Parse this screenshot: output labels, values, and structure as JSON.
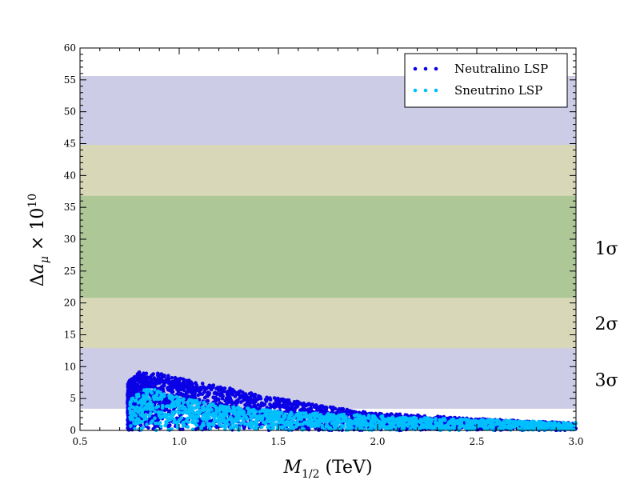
{
  "chart_data": {
    "type": "scatter",
    "xlabel": "M_{1/2} (TeV)",
    "ylabel": "Δa_μ × 10^{10}",
    "xlim": [
      0.5,
      3.0
    ],
    "ylim": [
      0,
      60
    ],
    "x_ticks": [
      "0.5",
      "1.0",
      "1.5",
      "2.0",
      "2.5",
      "3.0"
    ],
    "y_ticks": [
      "0",
      "5",
      "10",
      "15",
      "20",
      "25",
      "30",
      "35",
      "40",
      "45",
      "50",
      "55",
      "60"
    ],
    "grid": false,
    "legend_position": "top-right",
    "bands": [
      {
        "label": "3σ",
        "y_low": 3.4,
        "y_high": 55.6,
        "color": "#ccccE6"
      },
      {
        "label": "2σ",
        "y_low": 12.9,
        "y_high": 44.8,
        "color": "#d8d8b8"
      },
      {
        "label": "1σ",
        "y_low": 20.8,
        "y_high": 36.8,
        "color": "#adc796"
      }
    ],
    "series": [
      {
        "name": "Neutralino LSP",
        "color": "#0a00e6",
        "upper_envelope": [
          [
            0.74,
            7.5
          ],
          [
            0.8,
            9.3
          ],
          [
            0.85,
            8.8
          ],
          [
            0.9,
            9.0
          ],
          [
            1.0,
            8.2
          ],
          [
            1.1,
            7.6
          ],
          [
            1.2,
            7.0
          ],
          [
            1.3,
            6.3
          ],
          [
            1.4,
            5.6
          ],
          [
            1.5,
            5.0
          ],
          [
            1.6,
            4.5
          ],
          [
            1.7,
            4.0
          ],
          [
            1.8,
            3.5
          ],
          [
            1.9,
            3.0
          ],
          [
            2.0,
            2.7
          ],
          [
            2.2,
            2.4
          ],
          [
            2.4,
            2.0
          ],
          [
            2.6,
            1.7
          ],
          [
            2.8,
            1.4
          ],
          [
            3.0,
            1.2
          ]
        ]
      },
      {
        "name": "Sneutrino LSP",
        "color": "#00bfff",
        "upper_envelope": [
          [
            0.75,
            5.0
          ],
          [
            0.85,
            6.8
          ],
          [
            1.0,
            5.2
          ],
          [
            1.1,
            4.6
          ],
          [
            1.2,
            4.0
          ],
          [
            1.3,
            3.6
          ],
          [
            1.4,
            3.3
          ],
          [
            1.5,
            3.0
          ],
          [
            1.6,
            2.8
          ],
          [
            1.8,
            2.6
          ],
          [
            2.0,
            2.3
          ],
          [
            2.2,
            2.0
          ],
          [
            2.4,
            1.8
          ],
          [
            2.6,
            1.6
          ],
          [
            2.8,
            1.4
          ],
          [
            3.0,
            1.2
          ]
        ]
      }
    ]
  }
}
